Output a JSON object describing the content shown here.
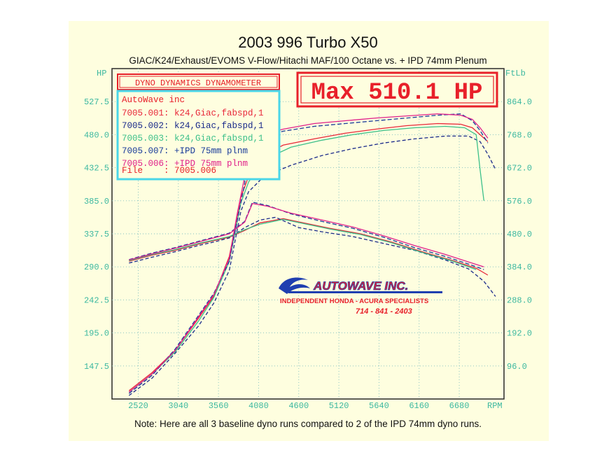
{
  "header": {
    "title": "2003 996 Turbo X50",
    "subtitle": "GIAC/K24/Exhaust/EVOMS V-Flow/Hitachi MAF/100 Octane vs. + IPD 74mm Plenum"
  },
  "footer": {
    "note": "Note: Here are all 3 baseline dyno runs compared to 2 of the IPD 74mm dyno runs."
  },
  "dyno_box": {
    "label": "DYNO DYNAMICS DYNAMOMETER"
  },
  "max_box": {
    "label": "Max 510.1 HP"
  },
  "legend": {
    "shop": "AutoWave inc",
    "file": "File    : 7005.006",
    "entries": [
      {
        "text": "7005.001: k24,Giac,fabspd,1",
        "color": "#e8283a"
      },
      {
        "text": "7005.002: k24,Giac,fabspd,1",
        "color": "#1a2a8a"
      },
      {
        "text": "7005.003: k24,Giac,fabspd,1",
        "color": "#3cc08a"
      },
      {
        "text": "7005.007: +IPD 75mm plnm",
        "color": "#1a3c9a"
      },
      {
        "text": "7005.006: +IPD 75mm plnm",
        "color": "#e0208a"
      }
    ]
  },
  "logo": {
    "brand": "AUTOWAVE INC.",
    "tagline": "INDEPENDENT HONDA - ACURA SPECIALISTS",
    "phone": "714 - 841 - 2403"
  },
  "colors": {
    "axis_text": "#3cb8a0",
    "grid": "#7fbfbf",
    "frame": "#2a2a2a",
    "red_box": "#e8202a",
    "legend_border": "#4ad6e8"
  },
  "chart_data": {
    "type": "line",
    "x_unit": "RPM",
    "left_axis_label": "HP",
    "right_axis_label": "FtLb",
    "x_ticks": [
      2520,
      3040,
      3560,
      4080,
      4600,
      5120,
      5640,
      6160,
      6680
    ],
    "left_ticks": [
      "147.5",
      "195.0",
      "242.5",
      "290.0",
      "337.5",
      "385.0",
      "432.5",
      "480.0",
      "527.5"
    ],
    "right_ticks": [
      "96.0",
      "192.0",
      "288.0",
      "384.0",
      "480.0",
      "576.0",
      "672.0",
      "768.0",
      "864.0"
    ],
    "xlim": [
      2180,
      7260
    ],
    "hp_lim": [
      100,
      575
    ],
    "tq_lim": [
      0,
      960
    ],
    "grid": true,
    "series": [
      {
        "name": "7005.001: k24,Giac,fabspd,1",
        "color": "#e8283a",
        "hp": [
          [
            2400,
            112
          ],
          [
            2700,
            138
          ],
          [
            3000,
            170
          ],
          [
            3300,
            216
          ],
          [
            3500,
            248
          ],
          [
            3700,
            305
          ],
          [
            3850,
            390
          ],
          [
            3950,
            420
          ],
          [
            4100,
            448
          ],
          [
            4400,
            465
          ],
          [
            4800,
            474
          ],
          [
            5200,
            482
          ],
          [
            5600,
            488
          ],
          [
            6000,
            493
          ],
          [
            6400,
            496
          ],
          [
            6700,
            495
          ],
          [
            6850,
            490
          ],
          [
            6950,
            480
          ],
          [
            7050,
            470
          ]
        ],
        "tq": [
          [
            2400,
            400
          ],
          [
            2700,
            418
          ],
          [
            3000,
            432
          ],
          [
            3300,
            450
          ],
          [
            3500,
            460
          ],
          [
            3700,
            470
          ],
          [
            3900,
            490
          ],
          [
            4100,
            512
          ],
          [
            4400,
            524
          ],
          [
            4700,
            510
          ],
          [
            5000,
            496
          ],
          [
            5400,
            480
          ],
          [
            5800,
            456
          ],
          [
            6200,
            428
          ],
          [
            6600,
            402
          ],
          [
            6900,
            380
          ],
          [
            7050,
            360
          ]
        ]
      },
      {
        "name": "7005.002: k24,Giac,fabspd,1",
        "color": "#1a2a8a",
        "hp": [
          [
            2400,
            105
          ],
          [
            2700,
            130
          ],
          [
            3000,
            166
          ],
          [
            3300,
            205
          ],
          [
            3500,
            238
          ],
          [
            3700,
            285
          ],
          [
            3850,
            370
          ],
          [
            3950,
            398
          ],
          [
            4150,
            420
          ],
          [
            4500,
            436
          ],
          [
            4900,
            450
          ],
          [
            5300,
            460
          ],
          [
            5700,
            468
          ],
          [
            6100,
            474
          ],
          [
            6500,
            478
          ],
          [
            6800,
            478
          ],
          [
            6950,
            470
          ],
          [
            7050,
            452
          ],
          [
            7150,
            430
          ]
        ],
        "tq": [
          [
            2400,
            395
          ],
          [
            2700,
            412
          ],
          [
            3000,
            428
          ],
          [
            3300,
            446
          ],
          [
            3500,
            456
          ],
          [
            3700,
            468
          ],
          [
            3900,
            498
          ],
          [
            4100,
            520
          ],
          [
            4300,
            528
          ],
          [
            4600,
            498
          ],
          [
            4900,
            486
          ],
          [
            5300,
            472
          ],
          [
            5700,
            452
          ],
          [
            6100,
            432
          ],
          [
            6500,
            404
          ],
          [
            6800,
            378
          ],
          [
            7000,
            342
          ],
          [
            7150,
            298
          ]
        ]
      },
      {
        "name": "7005.003: k24,Giac,fabspd,1",
        "color": "#3cc08a",
        "hp": [
          [
            2400,
            110
          ],
          [
            2700,
            136
          ],
          [
            3000,
            168
          ],
          [
            3300,
            212
          ],
          [
            3500,
            246
          ],
          [
            3700,
            298
          ],
          [
            3850,
            382
          ],
          [
            3950,
            412
          ],
          [
            4150,
            444
          ],
          [
            4500,
            462
          ],
          [
            4900,
            472
          ],
          [
            5300,
            480
          ],
          [
            5700,
            486
          ],
          [
            6100,
            490
          ],
          [
            6500,
            492
          ],
          [
            6750,
            490
          ],
          [
            6900,
            480
          ],
          [
            6950,
            430
          ],
          [
            7000,
            385
          ]
        ],
        "tq": [
          [
            2400,
            402
          ],
          [
            2700,
            420
          ],
          [
            3000,
            434
          ],
          [
            3300,
            452
          ],
          [
            3500,
            462
          ],
          [
            3700,
            472
          ],
          [
            3900,
            492
          ],
          [
            4100,
            508
          ],
          [
            4400,
            522
          ],
          [
            4700,
            508
          ],
          [
            5000,
            494
          ],
          [
            5400,
            478
          ],
          [
            5800,
            454
          ],
          [
            6200,
            426
          ],
          [
            6600,
            400
          ],
          [
            6900,
            376
          ]
        ]
      },
      {
        "name": "7005.007: +IPD 75mm plnm",
        "color": "#1a3c9a",
        "hp": [
          [
            2400,
            108
          ],
          [
            2700,
            134
          ],
          [
            3000,
            172
          ],
          [
            3300,
            220
          ],
          [
            3500,
            252
          ],
          [
            3700,
            298
          ],
          [
            3800,
            355
          ],
          [
            3900,
            410
          ],
          [
            3950,
            465
          ],
          [
            4100,
            476
          ],
          [
            4400,
            485
          ],
          [
            4800,
            492
          ],
          [
            5200,
            496
          ],
          [
            5600,
            500
          ],
          [
            6000,
            504
          ],
          [
            6400,
            508
          ],
          [
            6700,
            510
          ],
          [
            6850,
            500
          ],
          [
            6950,
            486
          ],
          [
            7050,
            468
          ]
        ],
        "tq": [
          [
            2400,
            405
          ],
          [
            2700,
            424
          ],
          [
            3000,
            440
          ],
          [
            3300,
            458
          ],
          [
            3500,
            470
          ],
          [
            3700,
            482
          ],
          [
            3900,
            516
          ],
          [
            4000,
            572
          ],
          [
            4200,
            562
          ],
          [
            4500,
            538
          ],
          [
            4900,
            516
          ],
          [
            5300,
            496
          ],
          [
            5700,
            470
          ],
          [
            6100,
            440
          ],
          [
            6500,
            414
          ],
          [
            6800,
            392
          ],
          [
            7000,
            376
          ]
        ]
      },
      {
        "name": "7005.006: +IPD 75mm plnm",
        "color": "#e0208a",
        "hp": [
          [
            2400,
            110
          ],
          [
            2700,
            136
          ],
          [
            3000,
            170
          ],
          [
            3300,
            218
          ],
          [
            3500,
            250
          ],
          [
            3700,
            302
          ],
          [
            3800,
            365
          ],
          [
            3900,
            420
          ],
          [
            3950,
            470
          ],
          [
            4100,
            480
          ],
          [
            4400,
            488
          ],
          [
            4800,
            496
          ],
          [
            5200,
            500
          ],
          [
            5600,
            504
          ],
          [
            6000,
            507
          ],
          [
            6400,
            510
          ],
          [
            6700,
            508
          ],
          [
            6850,
            502
          ],
          [
            6950,
            490
          ],
          [
            7050,
            475
          ]
        ],
        "tq": [
          [
            2400,
            404
          ],
          [
            2700,
            422
          ],
          [
            3000,
            438
          ],
          [
            3300,
            456
          ],
          [
            3500,
            468
          ],
          [
            3700,
            480
          ],
          [
            3900,
            514
          ],
          [
            4000,
            568
          ],
          [
            4200,
            560
          ],
          [
            4500,
            540
          ],
          [
            4900,
            520
          ],
          [
            5300,
            500
          ],
          [
            5700,
            474
          ],
          [
            6100,
            446
          ],
          [
            6500,
            420
          ],
          [
            6800,
            398
          ],
          [
            7000,
            384
          ]
        ]
      }
    ]
  }
}
